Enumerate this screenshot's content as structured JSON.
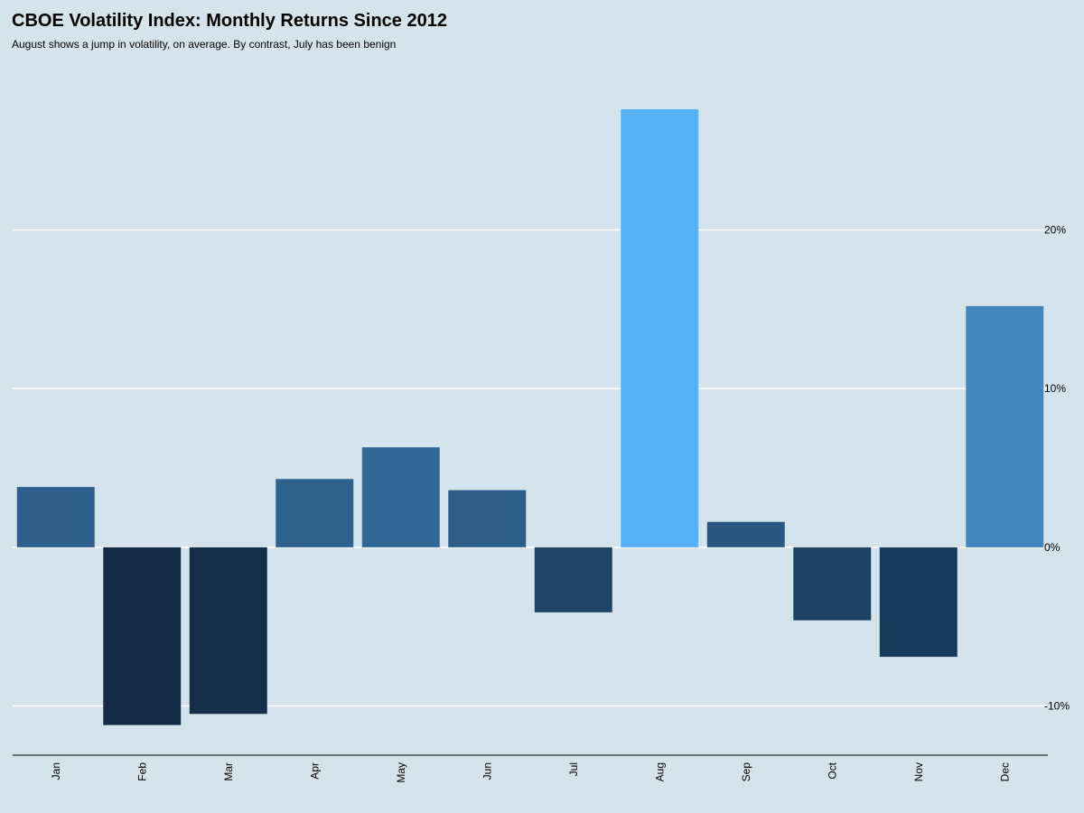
{
  "chart_data": {
    "type": "bar",
    "title": "CBOE Volatility Index: Monthly Returns Since 2012",
    "subtitle": "August shows a jump in volatility, on average.  By contrast, July has been benign",
    "xlabel": "",
    "ylabel": "",
    "categories": [
      "Jan",
      "Feb",
      "Mar",
      "Apr",
      "May",
      "Jun",
      "Jul",
      "Aug",
      "Sep",
      "Oct",
      "Nov",
      "Dec"
    ],
    "values": [
      3.8,
      -11.2,
      -10.5,
      4.3,
      6.3,
      3.6,
      -4.1,
      27.6,
      1.6,
      -4.6,
      -6.9,
      15.2
    ],
    "ylim": [
      -13.1,
      30.5
    ],
    "yticks": [
      -10,
      0,
      10,
      20
    ],
    "ytick_labels": [
      "-10%",
      "0%",
      "10%",
      "20%"
    ],
    "y_axis_position": "right",
    "grid": true,
    "legend": "none",
    "colors": {
      "background": "#d5e4ec",
      "gridline": "#ffffff",
      "axis": "#000000",
      "bar_low": "#132b45",
      "bar_high": "#56b1f7"
    }
  }
}
